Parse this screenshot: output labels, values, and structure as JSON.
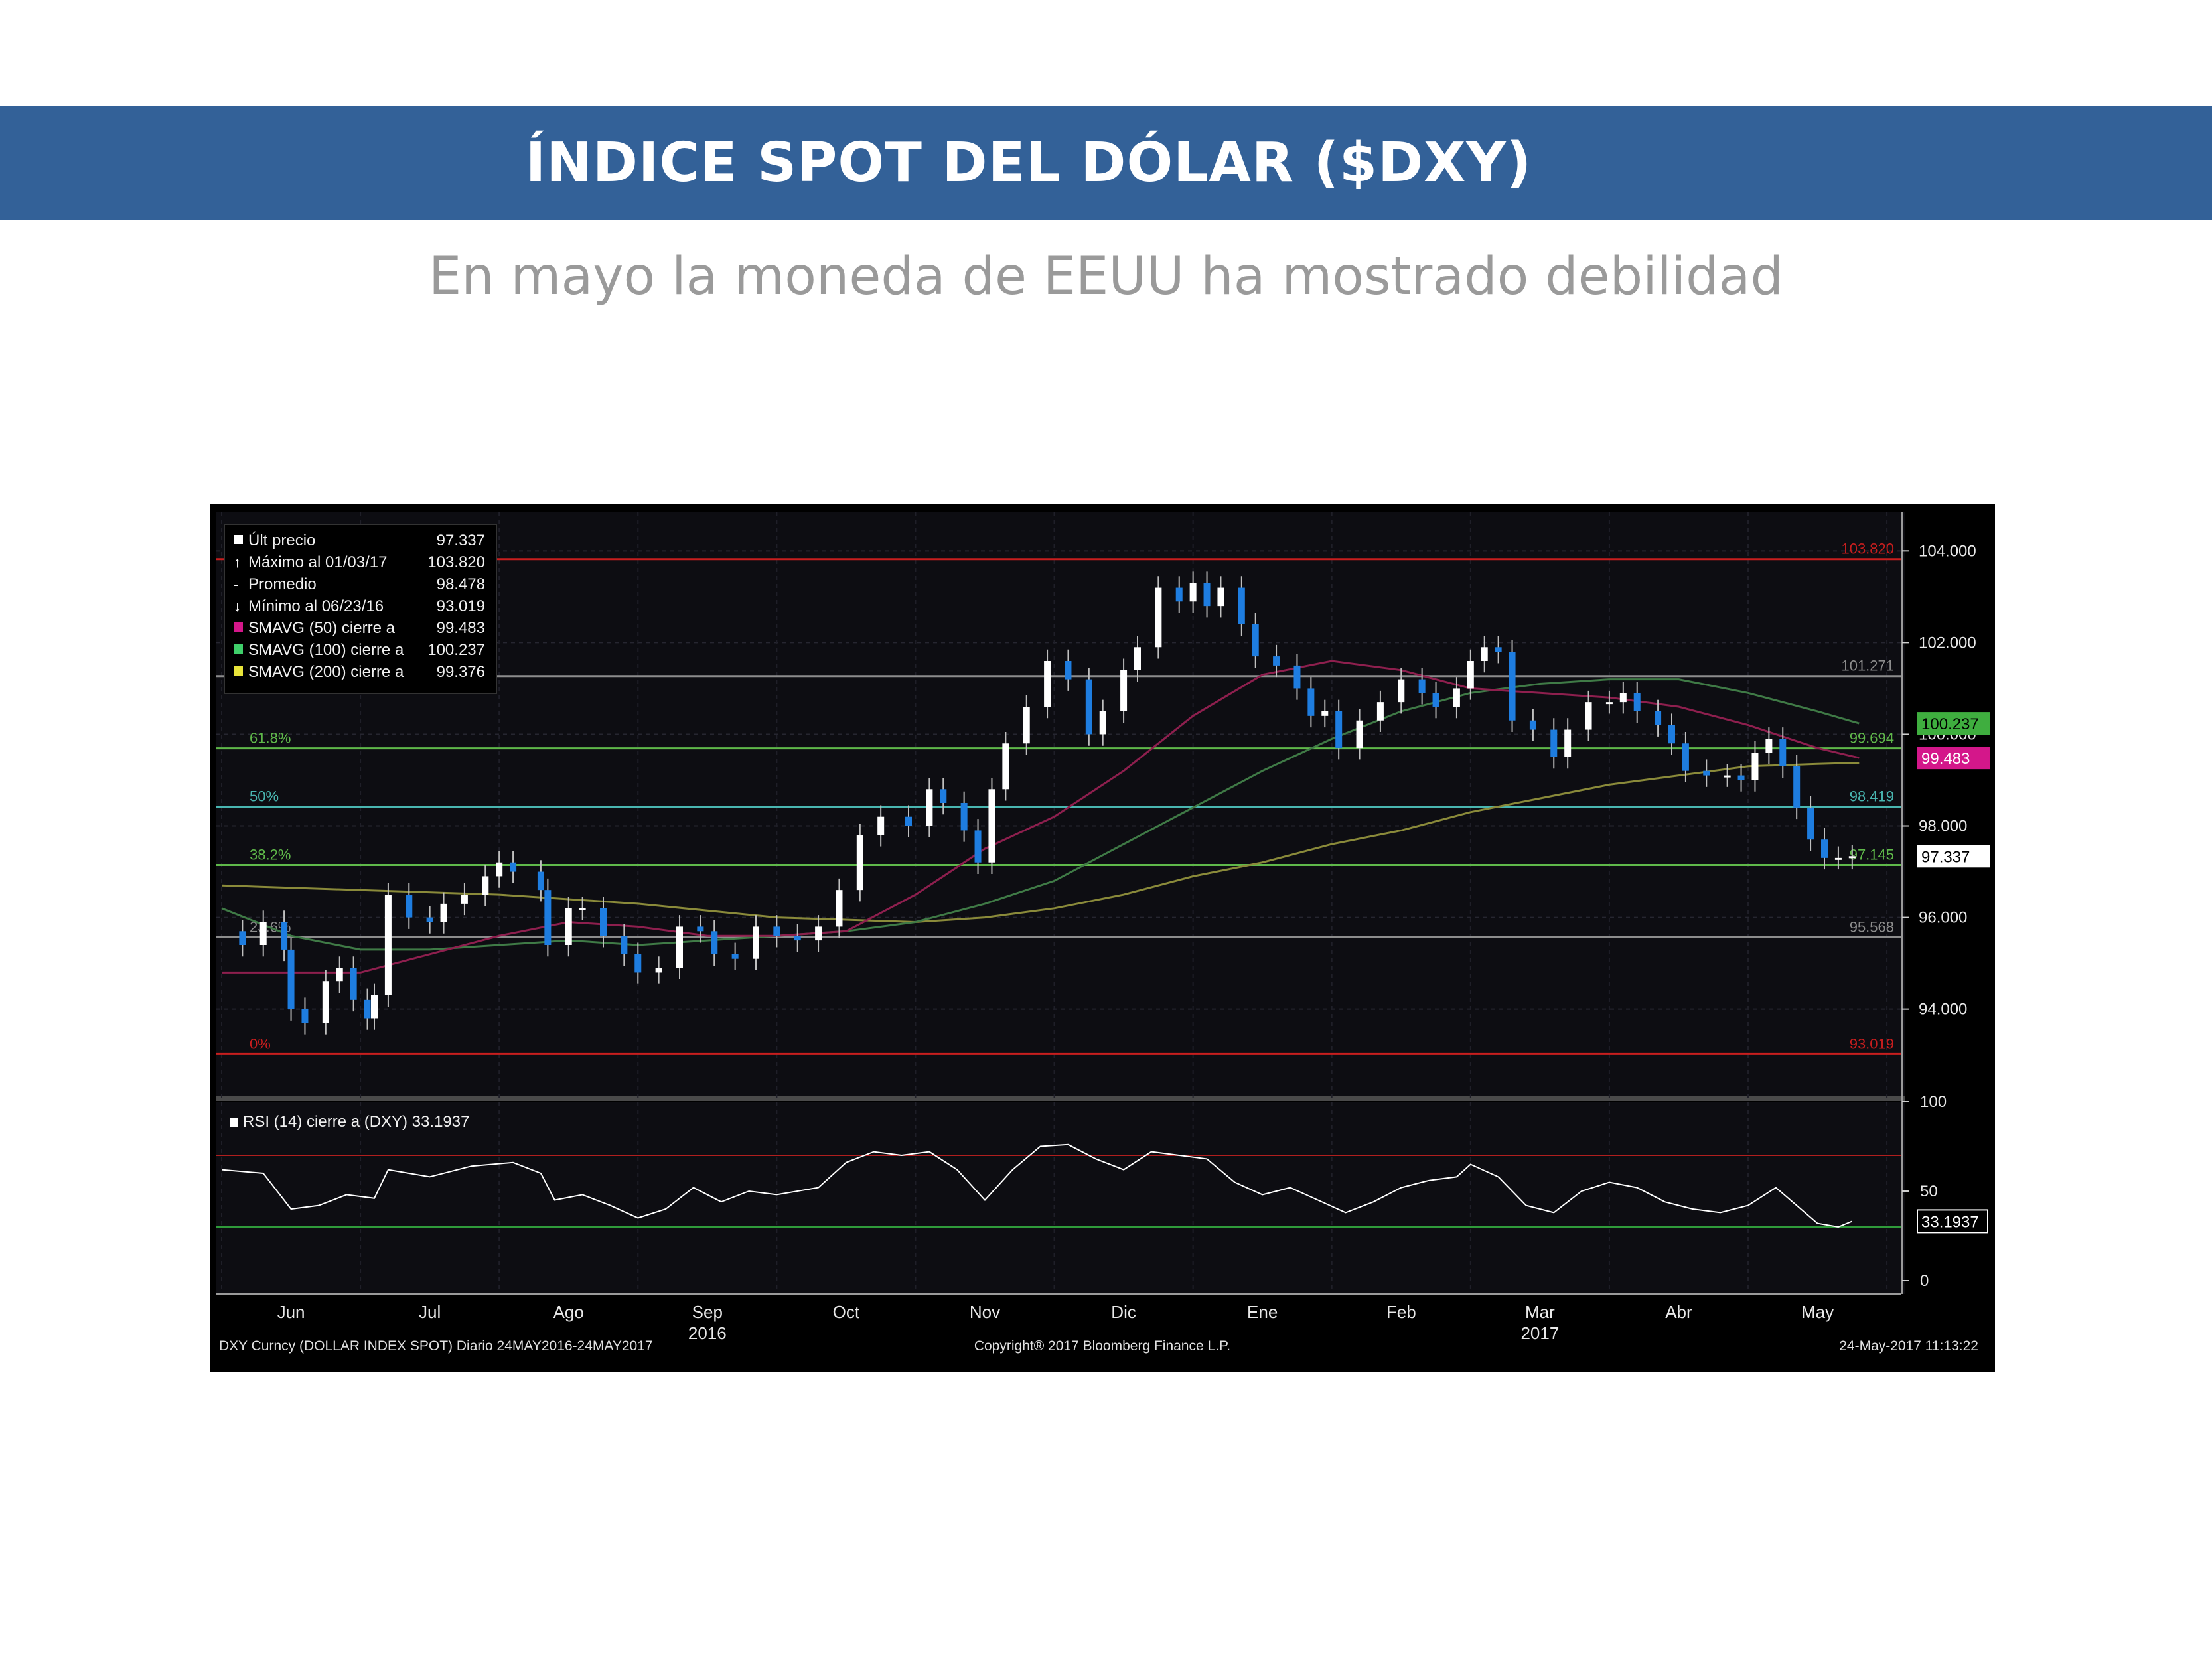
{
  "header": {
    "title": "ÍNDICE SPOT DEL DÓLAR ($DXY)",
    "subtitle": "En mayo la moneda de EEUU ha mostrado debilidad"
  },
  "colors": {
    "header_bg": "#336198",
    "price_up": "#ffffff",
    "price_down": "#1e7de0",
    "sma50": "#8e1f4e",
    "sma100": "#3f7a46",
    "sma200": "#8a8a3a",
    "rsi_line": "#ffffff"
  },
  "legend": [
    {
      "label": "Últ precio",
      "value": "97.337",
      "icon": "white-square"
    },
    {
      "label": "Máximo al 01/03/17",
      "value": "103.820",
      "icon": "up-arrow"
    },
    {
      "label": "Promedio",
      "value": "98.478",
      "icon": "dash"
    },
    {
      "label": "Mínimo al 06/23/16",
      "value": "93.019",
      "icon": "down-arrow"
    },
    {
      "label": "SMAVG (50) cierre a",
      "value": "99.483",
      "icon": "magenta-square"
    },
    {
      "label": "SMAVG (100) cierre a",
      "value": "100.237",
      "icon": "green-square"
    },
    {
      "label": "SMAVG (200) cierre a",
      "value": "99.376",
      "icon": "yellow-square"
    }
  ],
  "rsi_legend": "RSI (14) cierre a (DXY) 33.1937",
  "footer": {
    "left": "DXY Curncy (DOLLAR INDEX SPOT)  Diario 24MAY2016-24MAY2017",
    "center": "Copyright® 2017 Bloomberg Finance L.P.",
    "right": "24-May-2017 11:13:22"
  },
  "chart_data": {
    "type": "line",
    "series_type": "candlestick",
    "ylim": [
      92.3,
      104.7
    ],
    "y_ticks": [
      "104.000",
      "102.000",
      "100.000",
      "98.000",
      "96.000",
      "94.000"
    ],
    "y_tick_values": [
      104,
      102,
      100,
      98,
      96,
      94
    ],
    "x_months": [
      "Jun",
      "Jul",
      "Ago",
      "Sep",
      "Oct",
      "Nov",
      "Dic",
      "Ene",
      "Feb",
      "Mar",
      "Abr",
      "May"
    ],
    "x_years": [
      {
        "label": "2016",
        "under": "Sep"
      },
      {
        "label": "2017",
        "under": "Mar"
      }
    ],
    "x_range_months": [
      0,
      12.1
    ],
    "fib_levels": [
      {
        "label": "0%",
        "value": 93.019,
        "right_label": "93.019",
        "color": "#c81e1e"
      },
      {
        "label": "23.6%",
        "value": 95.568,
        "right_label": "95.568",
        "color": "#8c8c8c"
      },
      {
        "label": "38.2%",
        "value": 97.145,
        "right_label": "97.145",
        "color": "#5fb84a"
      },
      {
        "label": "50%",
        "value": 98.419,
        "right_label": "98.419",
        "color": "#49b5b0"
      },
      {
        "label": "61.8%",
        "value": 99.694,
        "right_label": "99.694",
        "color": "#5fb84a"
      },
      {
        "label": "",
        "value": 101.271,
        "right_label": "101.271",
        "color": "#8c8c8c"
      },
      {
        "label": "",
        "value": 103.82,
        "right_label": "103.820",
        "color": "#c81e1e"
      }
    ],
    "value_tags": [
      {
        "text": "100.237",
        "value": 100.237,
        "bg": "#3fae3f",
        "fg": "#000000"
      },
      {
        "text": "99.483",
        "value": 99.483,
        "bg": "#d4178a",
        "fg": "#ffffff"
      },
      {
        "text": "97.337",
        "value": 97.337,
        "bg": "#ffffff",
        "fg": "#000000"
      }
    ],
    "close": [
      [
        0,
        95.7
      ],
      [
        0.15,
        95.4
      ],
      [
        0.3,
        95.9
      ],
      [
        0.45,
        95.3
      ],
      [
        0.5,
        94.0
      ],
      [
        0.6,
        93.7
      ],
      [
        0.75,
        94.6
      ],
      [
        0.85,
        94.9
      ],
      [
        0.95,
        94.2
      ],
      [
        1.05,
        93.8
      ],
      [
        1.1,
        94.3
      ],
      [
        1.2,
        96.5
      ],
      [
        1.35,
        96.0
      ],
      [
        1.5,
        95.9
      ],
      [
        1.6,
        96.3
      ],
      [
        1.75,
        96.5
      ],
      [
        1.9,
        96.9
      ],
      [
        2.0,
        97.2
      ],
      [
        2.1,
        97.0
      ],
      [
        2.3,
        96.6
      ],
      [
        2.35,
        95.4
      ],
      [
        2.5,
        96.2
      ],
      [
        2.6,
        96.2
      ],
      [
        2.75,
        95.6
      ],
      [
        2.9,
        95.2
      ],
      [
        3.0,
        94.8
      ],
      [
        3.15,
        94.9
      ],
      [
        3.3,
        95.8
      ],
      [
        3.45,
        95.7
      ],
      [
        3.55,
        95.2
      ],
      [
        3.7,
        95.1
      ],
      [
        3.85,
        95.8
      ],
      [
        4.0,
        95.6
      ],
      [
        4.15,
        95.5
      ],
      [
        4.3,
        95.8
      ],
      [
        4.45,
        96.6
      ],
      [
        4.6,
        97.8
      ],
      [
        4.75,
        98.2
      ],
      [
        4.95,
        98.0
      ],
      [
        5.1,
        98.8
      ],
      [
        5.2,
        98.5
      ],
      [
        5.35,
        97.9
      ],
      [
        5.45,
        97.2
      ],
      [
        5.55,
        98.8
      ],
      [
        5.65,
        99.8
      ],
      [
        5.8,
        100.6
      ],
      [
        5.95,
        101.6
      ],
      [
        6.1,
        101.2
      ],
      [
        6.25,
        100.0
      ],
      [
        6.35,
        100.5
      ],
      [
        6.5,
        101.4
      ],
      [
        6.6,
        101.9
      ],
      [
        6.75,
        103.2
      ],
      [
        6.9,
        102.9
      ],
      [
        7.0,
        103.3
      ],
      [
        7.1,
        102.8
      ],
      [
        7.2,
        103.2
      ],
      [
        7.35,
        102.4
      ],
      [
        7.45,
        101.7
      ],
      [
        7.6,
        101.5
      ],
      [
        7.75,
        101.0
      ],
      [
        7.85,
        100.4
      ],
      [
        7.95,
        100.5
      ],
      [
        8.05,
        99.7
      ],
      [
        8.2,
        100.3
      ],
      [
        8.35,
        100.7
      ],
      [
        8.5,
        101.2
      ],
      [
        8.65,
        100.9
      ],
      [
        8.75,
        100.6
      ],
      [
        8.9,
        101.0
      ],
      [
        9.0,
        101.6
      ],
      [
        9.1,
        101.9
      ],
      [
        9.2,
        101.8
      ],
      [
        9.3,
        100.3
      ],
      [
        9.45,
        100.1
      ],
      [
        9.6,
        99.5
      ],
      [
        9.7,
        100.1
      ],
      [
        9.85,
        100.7
      ],
      [
        10.0,
        100.7
      ],
      [
        10.1,
        100.9
      ],
      [
        10.2,
        100.5
      ],
      [
        10.35,
        100.2
      ],
      [
        10.45,
        99.8
      ],
      [
        10.55,
        99.2
      ],
      [
        10.7,
        99.1
      ],
      [
        10.85,
        99.1
      ],
      [
        10.95,
        99.0
      ],
      [
        11.05,
        99.6
      ],
      [
        11.15,
        99.9
      ],
      [
        11.25,
        99.3
      ],
      [
        11.35,
        98.4
      ],
      [
        11.45,
        97.7
      ],
      [
        11.55,
        97.3
      ],
      [
        11.65,
        97.3
      ],
      [
        11.75,
        97.337
      ]
    ],
    "sma50": [
      [
        0,
        94.8
      ],
      [
        0.5,
        94.8
      ],
      [
        1.0,
        94.8
      ],
      [
        1.5,
        95.2
      ],
      [
        2.0,
        95.6
      ],
      [
        2.5,
        95.9
      ],
      [
        3.0,
        95.8
      ],
      [
        3.5,
        95.6
      ],
      [
        4.0,
        95.6
      ],
      [
        4.5,
        95.7
      ],
      [
        5.0,
        96.5
      ],
      [
        5.5,
        97.5
      ],
      [
        6.0,
        98.2
      ],
      [
        6.5,
        99.2
      ],
      [
        7.0,
        100.4
      ],
      [
        7.5,
        101.3
      ],
      [
        8.0,
        101.6
      ],
      [
        8.5,
        101.4
      ],
      [
        9.0,
        101.0
      ],
      [
        9.5,
        100.9
      ],
      [
        10.0,
        100.8
      ],
      [
        10.5,
        100.6
      ],
      [
        11.0,
        100.2
      ],
      [
        11.5,
        99.7
      ],
      [
        11.8,
        99.483
      ]
    ],
    "sma100": [
      [
        0,
        96.2
      ],
      [
        0.5,
        95.6
      ],
      [
        1.0,
        95.3
      ],
      [
        1.5,
        95.3
      ],
      [
        2.0,
        95.4
      ],
      [
        2.5,
        95.5
      ],
      [
        3.0,
        95.4
      ],
      [
        3.5,
        95.5
      ],
      [
        4.0,
        95.6
      ],
      [
        4.5,
        95.7
      ],
      [
        5.0,
        95.9
      ],
      [
        5.5,
        96.3
      ],
      [
        6.0,
        96.8
      ],
      [
        6.5,
        97.6
      ],
      [
        7.0,
        98.4
      ],
      [
        7.5,
        99.2
      ],
      [
        8.0,
        99.9
      ],
      [
        8.5,
        100.5
      ],
      [
        9.0,
        100.9
      ],
      [
        9.5,
        101.1
      ],
      [
        10.0,
        101.2
      ],
      [
        10.5,
        101.2
      ],
      [
        11.0,
        100.9
      ],
      [
        11.5,
        100.5
      ],
      [
        11.8,
        100.237
      ]
    ],
    "sma200": [
      [
        0,
        96.7
      ],
      [
        1.0,
        96.6
      ],
      [
        2.0,
        96.5
      ],
      [
        3.0,
        96.3
      ],
      [
        4.0,
        96.0
      ],
      [
        5.0,
        95.9
      ],
      [
        5.5,
        96.0
      ],
      [
        6.0,
        96.2
      ],
      [
        6.5,
        96.5
      ],
      [
        7.0,
        96.9
      ],
      [
        7.5,
        97.2
      ],
      [
        8.0,
        97.6
      ],
      [
        8.5,
        97.9
      ],
      [
        9.0,
        98.3
      ],
      [
        9.5,
        98.6
      ],
      [
        10.0,
        98.9
      ],
      [
        10.5,
        99.1
      ],
      [
        11.0,
        99.3
      ],
      [
        11.5,
        99.35
      ],
      [
        11.8,
        99.376
      ]
    ],
    "rsi": {
      "ylim": [
        0,
        100
      ],
      "y_ticks": [
        100,
        50,
        0
      ],
      "overbought": 70,
      "oversold": 30,
      "values": [
        [
          0,
          62
        ],
        [
          0.3,
          60
        ],
        [
          0.5,
          40
        ],
        [
          0.7,
          42
        ],
        [
          0.9,
          48
        ],
        [
          1.1,
          46
        ],
        [
          1.2,
          62
        ],
        [
          1.5,
          58
        ],
        [
          1.8,
          64
        ],
        [
          2.1,
          66
        ],
        [
          2.3,
          60
        ],
        [
          2.4,
          45
        ],
        [
          2.6,
          48
        ],
        [
          2.8,
          42
        ],
        [
          3.0,
          35
        ],
        [
          3.2,
          40
        ],
        [
          3.4,
          52
        ],
        [
          3.6,
          44
        ],
        [
          3.8,
          50
        ],
        [
          4.0,
          48
        ],
        [
          4.3,
          52
        ],
        [
          4.5,
          66
        ],
        [
          4.7,
          72
        ],
        [
          4.9,
          70
        ],
        [
          5.1,
          72
        ],
        [
          5.3,
          62
        ],
        [
          5.5,
          45
        ],
        [
          5.7,
          62
        ],
        [
          5.9,
          75
        ],
        [
          6.1,
          76
        ],
        [
          6.3,
          68
        ],
        [
          6.5,
          62
        ],
        [
          6.7,
          72
        ],
        [
          6.9,
          70
        ],
        [
          7.1,
          68
        ],
        [
          7.3,
          55
        ],
        [
          7.5,
          48
        ],
        [
          7.7,
          52
        ],
        [
          7.9,
          45
        ],
        [
          8.1,
          38
        ],
        [
          8.3,
          44
        ],
        [
          8.5,
          52
        ],
        [
          8.7,
          56
        ],
        [
          8.9,
          58
        ],
        [
          9.0,
          65
        ],
        [
          9.2,
          58
        ],
        [
          9.4,
          42
        ],
        [
          9.6,
          38
        ],
        [
          9.8,
          50
        ],
        [
          10.0,
          55
        ],
        [
          10.2,
          52
        ],
        [
          10.4,
          44
        ],
        [
          10.6,
          40
        ],
        [
          10.8,
          38
        ],
        [
          11.0,
          42
        ],
        [
          11.2,
          52
        ],
        [
          11.35,
          42
        ],
        [
          11.5,
          32
        ],
        [
          11.65,
          30
        ],
        [
          11.75,
          33.19
        ]
      ]
    },
    "rsi_tag": "33.1937"
  }
}
